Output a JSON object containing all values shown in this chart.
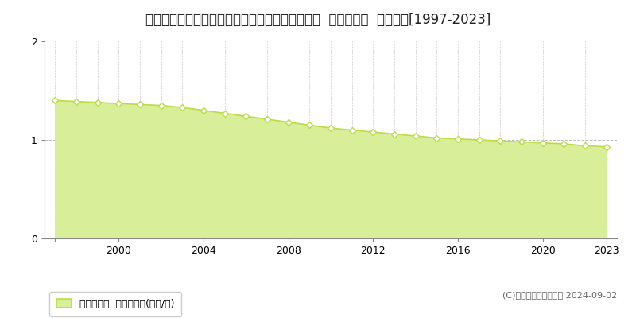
{
  "title": "岡山県英田郡西粟倉村大字筏津字屋敷３３番１外  基準地価格  地価推移[1997-2023]",
  "years": [
    1997,
    1998,
    1999,
    2000,
    2001,
    2002,
    2003,
    2004,
    2005,
    2006,
    2007,
    2008,
    2009,
    2010,
    2011,
    2012,
    2013,
    2014,
    2015,
    2016,
    2017,
    2018,
    2019,
    2020,
    2021,
    2022,
    2023
  ],
  "values": [
    1.4,
    1.39,
    1.38,
    1.37,
    1.36,
    1.35,
    1.33,
    1.3,
    1.27,
    1.24,
    1.21,
    1.18,
    1.15,
    1.12,
    1.1,
    1.08,
    1.06,
    1.04,
    1.02,
    1.01,
    1.0,
    0.99,
    0.98,
    0.97,
    0.96,
    0.94,
    0.93
  ],
  "line_color": "#bbdd44",
  "fill_color": "#d8ee99",
  "marker_facecolor": "#ffffff",
  "marker_edgecolor": "#bbdd44",
  "background_color": "#ffffff",
  "grid_color": "#aaaaaa",
  "ylim": [
    0,
    2
  ],
  "yticks": [
    0,
    1,
    2
  ],
  "legend_label": "基準地価格  平均坪単価(万円/坪)",
  "copyright_text": "(C)土地価格ドットコム 2024-09-02",
  "title_fontsize": 12,
  "legend_fontsize": 9,
  "copyright_fontsize": 8,
  "xtick_years": [
    1997,
    2000,
    2004,
    2008,
    2012,
    2016,
    2020,
    2023
  ],
  "xtick_labels": [
    "",
    "2000",
    "2004",
    "2008",
    "2012",
    "2016",
    "2020",
    "2023"
  ]
}
